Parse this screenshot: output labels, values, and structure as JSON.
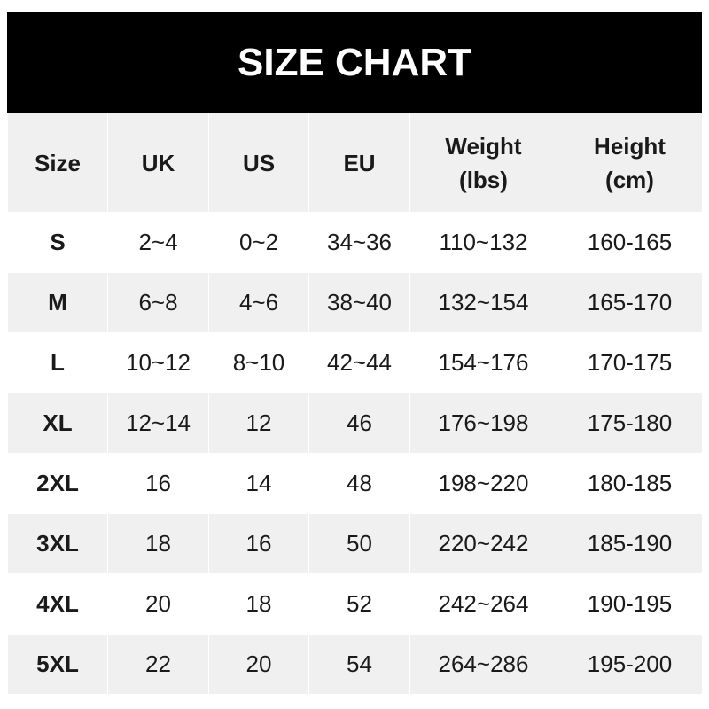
{
  "title": "SIZE CHART",
  "headers": [
    "Size",
    "UK",
    "US",
    "EU",
    "Weight\n(lbs)",
    "Height\n(cm)"
  ],
  "header_lines": [
    [
      "Size"
    ],
    [
      "UK"
    ],
    [
      "US"
    ],
    [
      "EU"
    ],
    [
      "Weight",
      "(lbs)"
    ],
    [
      "Height",
      "(cm)"
    ]
  ],
  "rows": [
    [
      "S",
      "2~4",
      "0~2",
      "34~36",
      "110~132",
      "160-165"
    ],
    [
      "M",
      "6~8",
      "4~6",
      "38~40",
      "132~154",
      "165-170"
    ],
    [
      "L",
      "10~12",
      "8~10",
      "42~44",
      "154~176",
      "170-175"
    ],
    [
      "XL",
      "12~14",
      "12",
      "46",
      "176~198",
      "175-180"
    ],
    [
      "2XL",
      "16",
      "14",
      "48",
      "198~220",
      "180-185"
    ],
    [
      "3XL",
      "18",
      "16",
      "50",
      "220~242",
      "185-190"
    ],
    [
      "4XL",
      "20",
      "18",
      "52",
      "242~264",
      "190-195"
    ],
    [
      "5XL",
      "22",
      "20",
      "54",
      "264~286",
      "195-200"
    ]
  ]
}
